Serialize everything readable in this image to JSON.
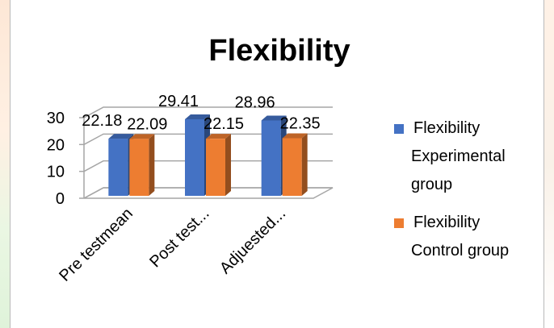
{
  "chart_data": {
    "type": "bar",
    "title": "Flexibility",
    "categories": [
      "Pre testmean",
      "Post test...",
      "Adjuested..."
    ],
    "series": [
      {
        "name": "Flexibility Experimental group",
        "values": [
          22.18,
          29.41,
          28.96
        ],
        "labels": [
          "22.18",
          "29.41",
          "28.96"
        ],
        "color": "#4472c4"
      },
      {
        "name": "Flexibility Control group",
        "values": [
          22.09,
          22.15,
          22.35
        ],
        "labels": [
          "22.09",
          "22.15",
          "22.35"
        ],
        "color": "#ed7d31"
      }
    ],
    "yticks": [
      "0",
      "10",
      "20",
      "30"
    ],
    "ylim": [
      0,
      30
    ],
    "xlabel": "",
    "ylabel": "",
    "legend_position": "right",
    "grid": true,
    "style": "3d-clustered-column"
  },
  "legend": [
    {
      "lines": [
        "Flexibility",
        "Experimental",
        "group"
      ],
      "color": "#4472c4"
    },
    {
      "lines": [
        "Flexibility",
        "Control group"
      ],
      "color": "#ed7d31"
    }
  ]
}
